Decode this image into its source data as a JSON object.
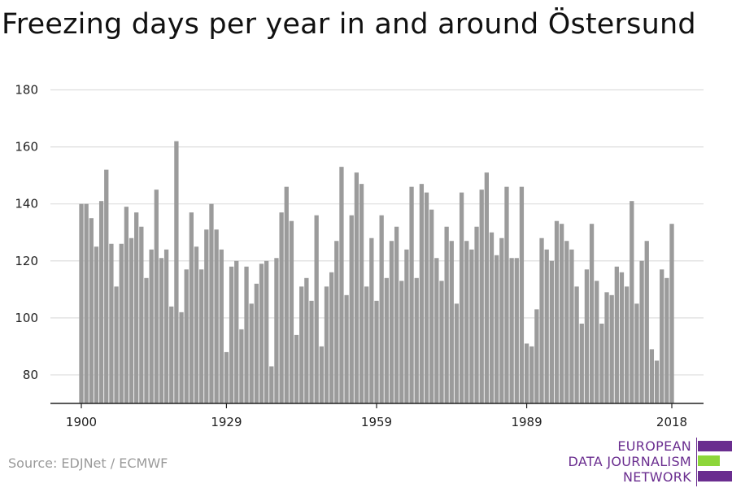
{
  "title": "Freezing days per year in and around Östersund",
  "source": "Source: EDJNet / ECMWF",
  "logo": {
    "lines": [
      "EUROPEAN",
      "DATA JOURNALISM",
      "NETWORK"
    ],
    "purple": "#6a2d8f",
    "green": "#8dd63a"
  },
  "colors": {
    "bar": "#9b9b9b",
    "grid": "#dedede",
    "axis": "#222222"
  },
  "chart_data": {
    "type": "bar",
    "title": "Freezing days per year in and around Östersund",
    "xlabel": "",
    "ylabel": "",
    "ylim": [
      70,
      183
    ],
    "yticks": [
      80,
      100,
      120,
      140,
      160,
      180
    ],
    "xticks": [
      1900,
      1929,
      1959,
      1989,
      2018
    ],
    "grid": true,
    "x": [
      1900,
      1901,
      1902,
      1903,
      1904,
      1905,
      1906,
      1907,
      1908,
      1909,
      1910,
      1911,
      1912,
      1913,
      1914,
      1915,
      1916,
      1917,
      1918,
      1919,
      1920,
      1921,
      1922,
      1923,
      1924,
      1925,
      1926,
      1927,
      1928,
      1929,
      1930,
      1931,
      1932,
      1933,
      1934,
      1935,
      1936,
      1937,
      1938,
      1939,
      1940,
      1941,
      1942,
      1943,
      1944,
      1945,
      1946,
      1947,
      1948,
      1949,
      1950,
      1951,
      1952,
      1953,
      1954,
      1955,
      1956,
      1957,
      1958,
      1959,
      1960,
      1961,
      1962,
      1963,
      1964,
      1965,
      1966,
      1967,
      1968,
      1969,
      1970,
      1971,
      1972,
      1973,
      1974,
      1975,
      1976,
      1977,
      1978,
      1979,
      1980,
      1981,
      1982,
      1983,
      1984,
      1985,
      1986,
      1987,
      1988,
      1989,
      1990,
      1991,
      1992,
      1993,
      1994,
      1995,
      1996,
      1997,
      1998,
      1999,
      2000,
      2001,
      2002,
      2003,
      2004,
      2005,
      2006,
      2007,
      2008,
      2009,
      2010,
      2011,
      2012,
      2013,
      2014,
      2015,
      2016,
      2017,
      2018
    ],
    "values": [
      140,
      140,
      135,
      125,
      141,
      152,
      126,
      111,
      126,
      139,
      128,
      137,
      132,
      114,
      124,
      145,
      121,
      124,
      104,
      162,
      102,
      117,
      137,
      125,
      117,
      131,
      140,
      131,
      124,
      88,
      118,
      120,
      96,
      118,
      105,
      112,
      119,
      120,
      83,
      121,
      137,
      146,
      134,
      94,
      111,
      114,
      106,
      136,
      90,
      111,
      116,
      127,
      153,
      108,
      136,
      151,
      147,
      111,
      128,
      106,
      136,
      114,
      127,
      132,
      113,
      124,
      146,
      114,
      147,
      144,
      138,
      121,
      113,
      132,
      127,
      105,
      144,
      127,
      124,
      132,
      145,
      151,
      130,
      122,
      128,
      146,
      121,
      121,
      146,
      91,
      90,
      103,
      128,
      124,
      120,
      134,
      133,
      127,
      124,
      111,
      98,
      117,
      133,
      113,
      98,
      109,
      108,
      118,
      116,
      111,
      141,
      105,
      120,
      127,
      89,
      85,
      117,
      114,
      133
    ]
  }
}
